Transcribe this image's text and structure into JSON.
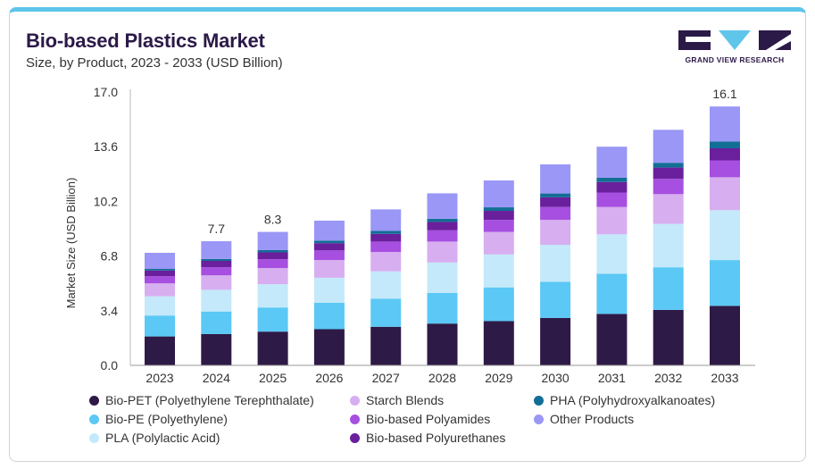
{
  "header": {
    "title": "Bio-based Plastics Market",
    "subtitle": "Size, by Product, 2023 - 2033 (USD Billion)"
  },
  "brand": {
    "name": "GRAND VIEW RESEARCH",
    "logo_icon": "grand-view-research-logo",
    "accent_color": "#5fc5e9"
  },
  "chart_data": {
    "type": "bar",
    "stacked": true,
    "title": "Bio-based Plastics Market",
    "subtitle": "Size, by Product, 2023 - 2033 (USD Billion)",
    "xlabel": "",
    "ylabel": "Market Size (USD Billion)",
    "ylim": [
      0,
      17
    ],
    "yticks": [
      "0.0",
      "3.4",
      "6.8",
      "10.2",
      "13.6",
      "17.0"
    ],
    "grid": false,
    "legend_position": "bottom",
    "categories": [
      "2023",
      "2024",
      "2025",
      "2026",
      "2027",
      "2028",
      "2029",
      "2030",
      "2031",
      "2032",
      "2033"
    ],
    "totals_labels": [
      {
        "category": "2024",
        "label": "7.7"
      },
      {
        "category": "2025",
        "label": "8.3"
      },
      {
        "category": "2033",
        "label": "16.1"
      }
    ],
    "series": [
      {
        "name": "Bio-PET (Polyethylene Terephthalate)",
        "color": "#2e1a47",
        "values": [
          1.8,
          1.95,
          2.1,
          2.25,
          2.4,
          2.6,
          2.75,
          2.95,
          3.2,
          3.45,
          3.7
        ]
      },
      {
        "name": "Bio-PE (Polyethylene)",
        "color": "#5bc8f5",
        "values": [
          1.3,
          1.4,
          1.5,
          1.65,
          1.75,
          1.9,
          2.1,
          2.25,
          2.5,
          2.65,
          2.85
        ]
      },
      {
        "name": "PLA (Polylactic Acid)",
        "color": "#c4e9fa",
        "values": [
          1.2,
          1.35,
          1.45,
          1.55,
          1.7,
          1.9,
          2.05,
          2.3,
          2.45,
          2.7,
          3.1
        ]
      },
      {
        "name": "Starch Blends",
        "color": "#d7aef0",
        "values": [
          0.8,
          0.9,
          1.0,
          1.1,
          1.2,
          1.3,
          1.4,
          1.55,
          1.7,
          1.85,
          2.05
        ]
      },
      {
        "name": "Bio-based Polyamides",
        "color": "#a64fe0",
        "values": [
          0.45,
          0.5,
          0.55,
          0.6,
          0.65,
          0.7,
          0.75,
          0.8,
          0.9,
          0.95,
          1.05
        ]
      },
      {
        "name": "Bio-based Polyurethanes",
        "color": "#6a1f9c",
        "values": [
          0.35,
          0.4,
          0.43,
          0.45,
          0.48,
          0.52,
          0.56,
          0.6,
          0.65,
          0.7,
          0.75
        ]
      },
      {
        "name": "PHA (Polyhydroxyalkanoates)",
        "color": "#136e96",
        "values": [
          0.1,
          0.12,
          0.14,
          0.16,
          0.18,
          0.2,
          0.22,
          0.24,
          0.27,
          0.3,
          0.42
        ]
      },
      {
        "name": "Other Products",
        "color": "#9a97f6",
        "values": [
          1.0,
          1.1,
          1.13,
          1.24,
          1.34,
          1.58,
          1.67,
          1.81,
          1.93,
          2.05,
          2.18
        ]
      }
    ]
  },
  "legend": {
    "items": [
      {
        "label": "Bio-PET (Polyethylene Terephthalate)",
        "color": "#2e1a47"
      },
      {
        "label": "Starch Blends",
        "color": "#d7aef0"
      },
      {
        "label": "PHA (Polyhydroxyalkanoates)",
        "color": "#136e96"
      },
      {
        "label": "Bio-PE (Polyethylene)",
        "color": "#5bc8f5"
      },
      {
        "label": "Bio-based Polyamides",
        "color": "#a64fe0"
      },
      {
        "label": "Other Products",
        "color": "#9a97f6"
      },
      {
        "label": "PLA (Polylactic Acid)",
        "color": "#c4e9fa"
      },
      {
        "label": "Bio-based Polyurethanes",
        "color": "#6a1f9c"
      }
    ]
  }
}
